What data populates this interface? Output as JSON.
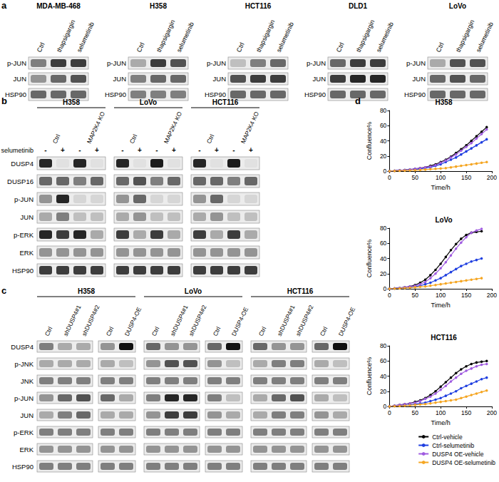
{
  "panels": {
    "a": {
      "label": "a",
      "lanes": [
        "Ctrl",
        "thapsigargin",
        "selumetinib"
      ],
      "groups": [
        {
          "name": "MDA-MB-468",
          "rows": [
            {
              "name": "p-JUN",
              "bands": [
                0.5,
                0.8,
                0.8
              ]
            },
            {
              "name": "JUN",
              "bands": [
                0.4,
                0.6,
                0.7
              ]
            },
            {
              "name": "HSP90",
              "bands": [
                0.6,
                0.6,
                0.6
              ]
            }
          ]
        },
        {
          "name": "H358",
          "rows": [
            {
              "name": "p-JUN",
              "bands": [
                0.3,
                0.8,
                0.7
              ]
            },
            {
              "name": "JUN",
              "bands": [
                0.5,
                0.6,
                0.6
              ]
            },
            {
              "name": "HSP90",
              "bands": [
                0.5,
                0.5,
                0.5
              ]
            }
          ]
        },
        {
          "name": "HCT116",
          "rows": [
            {
              "name": "p-JUN",
              "bands": [
                0.2,
                0.5,
                0.6
              ]
            },
            {
              "name": "JUN",
              "bands": [
                0.7,
                0.8,
                0.8
              ]
            },
            {
              "name": "HSP90",
              "bands": [
                0.6,
                0.6,
                0.6
              ]
            }
          ]
        },
        {
          "name": "DLD1",
          "rows": [
            {
              "name": "p-JUN",
              "bands": [
                0.6,
                0.8,
                0.8
              ]
            },
            {
              "name": "JUN",
              "bands": [
                0.8,
                0.9,
                0.9
              ]
            },
            {
              "name": "HSP90",
              "bands": [
                0.6,
                0.6,
                0.6
              ]
            }
          ]
        },
        {
          "name": "LoVo",
          "rows": [
            {
              "name": "p-JUN",
              "bands": [
                0.3,
                0.7,
                0.7
              ]
            },
            {
              "name": "JUN",
              "bands": [
                0.6,
                0.7,
                0.6
              ]
            },
            {
              "name": "HSP90",
              "bands": [
                0.6,
                0.6,
                0.6
              ]
            }
          ]
        }
      ]
    },
    "b": {
      "label": "b",
      "groups": [
        "H358",
        "LoVo",
        "HCT116"
      ],
      "subgroups": [
        "Ctrl",
        "MAP2K4 KO"
      ],
      "treatment": "selumetinib",
      "signs": [
        "-",
        "+",
        "-",
        "+"
      ],
      "rows": [
        {
          "name": "DUSP4",
          "bands": [
            0.9,
            0.05,
            0.9,
            0.05,
            0.9,
            0.05,
            0.95,
            0.05,
            0.9,
            0.05,
            0.95,
            0.05
          ]
        },
        {
          "name": "DUSP16",
          "bands": [
            0.6,
            0.6,
            0.5,
            0.6,
            0.6,
            0.7,
            0.5,
            0.6,
            0.6,
            0.6,
            0.5,
            0.6
          ]
        },
        {
          "name": "p-JUN",
          "bands": [
            0.4,
            0.9,
            0.1,
            0.1,
            0.4,
            0.6,
            0.1,
            0.1,
            0.4,
            0.6,
            0.1,
            0.1
          ]
        },
        {
          "name": "JUN",
          "bands": [
            0.3,
            0.5,
            0.2,
            0.2,
            0.3,
            0.4,
            0.2,
            0.2,
            0.3,
            0.4,
            0.2,
            0.2
          ]
        },
        {
          "name": "p-ERK",
          "bands": [
            0.9,
            0.8,
            0.9,
            0.3,
            0.8,
            0.3,
            0.8,
            0.3,
            0.8,
            0.3,
            0.8,
            0.3
          ]
        },
        {
          "name": "ERK",
          "bands": [
            0.4,
            0.4,
            0.4,
            0.4,
            0.4,
            0.4,
            0.4,
            0.4,
            0.4,
            0.4,
            0.4,
            0.4
          ]
        },
        {
          "name": "HSP90",
          "bands": [
            0.8,
            0.8,
            0.8,
            0.8,
            0.8,
            0.8,
            0.8,
            0.8,
            0.8,
            0.8,
            0.8,
            0.8
          ]
        }
      ]
    },
    "c": {
      "label": "c",
      "groups": [
        "H358",
        "LoVo",
        "HCT116"
      ],
      "lanes": [
        "Ctrl",
        "shDUSP4#1",
        "shDUSP4#2",
        "Ctrl",
        "DUSP4-OE"
      ],
      "rows": [
        {
          "name": "DUSP4",
          "bands": [
            0.5,
            0.3,
            0.3,
            0.4,
            1.0,
            0.6,
            0.4,
            0.4,
            0.6,
            1.0,
            0.6,
            0.4,
            0.4,
            0.6,
            1.0
          ]
        },
        {
          "name": "p-JNK",
          "bands": [
            0.3,
            0.3,
            0.3,
            0.3,
            0.2,
            0.4,
            0.7,
            0.7,
            0.4,
            0.2,
            0.3,
            0.5,
            0.5,
            0.3,
            0.2
          ]
        },
        {
          "name": "JNK",
          "bands": [
            0.5,
            0.5,
            0.5,
            0.5,
            0.5,
            0.5,
            0.5,
            0.5,
            0.5,
            0.5,
            0.5,
            0.5,
            0.5,
            0.5,
            0.5
          ]
        },
        {
          "name": "p-JUN",
          "bands": [
            0.4,
            0.6,
            0.7,
            0.6,
            0.3,
            0.5,
            0.9,
            0.9,
            0.5,
            0.2,
            0.3,
            0.6,
            0.7,
            0.3,
            0.2
          ]
        },
        {
          "name": "JUN",
          "bands": [
            0.3,
            0.5,
            0.6,
            0.3,
            0.3,
            0.4,
            0.8,
            0.8,
            0.4,
            0.3,
            0.3,
            0.5,
            0.5,
            0.4,
            0.3
          ]
        },
        {
          "name": "p-ERK",
          "bands": [
            0.5,
            0.5,
            0.5,
            0.5,
            0.5,
            0.5,
            0.5,
            0.5,
            0.5,
            0.5,
            0.5,
            0.5,
            0.5,
            0.5,
            0.5
          ]
        },
        {
          "name": "ERK",
          "bands": [
            0.4,
            0.4,
            0.4,
            0.4,
            0.4,
            0.4,
            0.4,
            0.4,
            0.4,
            0.4,
            0.4,
            0.4,
            0.4,
            0.4,
            0.4
          ]
        },
        {
          "name": "HSP90",
          "bands": [
            0.5,
            0.5,
            0.5,
            0.5,
            0.5,
            0.5,
            0.5,
            0.5,
            0.5,
            0.5,
            0.5,
            0.5,
            0.5,
            0.5,
            0.5
          ]
        }
      ]
    },
    "d": {
      "label": "d"
    }
  },
  "chart_data": [
    {
      "type": "line",
      "title": "H358",
      "xlabel": "Time/h",
      "ylabel": "Confluence%",
      "x": [
        0,
        10,
        20,
        30,
        40,
        50,
        60,
        70,
        80,
        90,
        100,
        110,
        120,
        130,
        140,
        150,
        160,
        170,
        180,
        190
      ],
      "xlim": [
        0,
        200
      ],
      "xticks": [
        0,
        50,
        100,
        150,
        200
      ],
      "ylim": [
        0,
        80
      ],
      "yticks": [
        0,
        20,
        40,
        60,
        80
      ],
      "grid": false,
      "series": [
        {
          "name": "Ctrl-vehicle",
          "color": "#000000",
          "marker": "circle",
          "values": [
            0,
            0.5,
            1,
            1.5,
            2,
            3,
            4,
            5,
            7,
            9,
            12,
            15,
            19,
            24,
            29,
            34,
            40,
            46,
            52,
            58
          ]
        },
        {
          "name": "Ctrl-selumetinib",
          "color": "#1f3fe0",
          "marker": "circle",
          "values": [
            0,
            0.5,
            1,
            1.5,
            2,
            2.5,
            3,
            4,
            5,
            7,
            9,
            12,
            15,
            18,
            22,
            26,
            30,
            34,
            38,
            42
          ]
        },
        {
          "name": "DUSP4 OE-vehicle",
          "color": "#a05ce0",
          "marker": "circle",
          "values": [
            0,
            0.5,
            1,
            1.5,
            2,
            3,
            4,
            5,
            6,
            8,
            11,
            14,
            18,
            22,
            27,
            32,
            37,
            43,
            49,
            55
          ]
        },
        {
          "name": "DUSP4 OE-selumetinib",
          "color": "#f5a623",
          "marker": "circle",
          "values": [
            0,
            0.3,
            0.5,
            0.8,
            1,
            1.2,
            1.5,
            2,
            2.5,
            3,
            3.5,
            4,
            5,
            6,
            7,
            8,
            9,
            10,
            11,
            12
          ]
        }
      ]
    },
    {
      "type": "line",
      "title": "LoVo",
      "xlabel": "Time/h",
      "ylabel": "Confluence%",
      "x": [
        0,
        10,
        20,
        30,
        40,
        50,
        60,
        70,
        80,
        90,
        100,
        110,
        120,
        130,
        140,
        150,
        160,
        170,
        180
      ],
      "xlim": [
        0,
        200
      ],
      "xticks": [
        0,
        50,
        100,
        150,
        200
      ],
      "ylim": [
        0,
        80
      ],
      "yticks": [
        0,
        20,
        40,
        60,
        80
      ],
      "grid": false,
      "series": [
        {
          "name": "Ctrl-vehicle",
          "color": "#000000",
          "marker": "circle",
          "values": [
            0,
            0.5,
            1,
            2,
            3,
            5,
            8,
            12,
            18,
            25,
            33,
            42,
            51,
            59,
            66,
            71,
            74,
            75,
            76
          ]
        },
        {
          "name": "Ctrl-selumetinib",
          "color": "#1f3fe0",
          "marker": "circle",
          "values": [
            0,
            0.5,
            1,
            1.5,
            2,
            3,
            4,
            6,
            8,
            11,
            14,
            18,
            22,
            26,
            30,
            33,
            36,
            38,
            40
          ]
        },
        {
          "name": "DUSP4 OE-vehicle",
          "color": "#a05ce0",
          "marker": "circle",
          "values": [
            0,
            0.5,
            1,
            2,
            3,
            4,
            6,
            9,
            14,
            20,
            27,
            35,
            44,
            53,
            61,
            68,
            74,
            77,
            79
          ]
        },
        {
          "name": "DUSP4 OE-selumetinib",
          "color": "#f5a623",
          "marker": "circle",
          "values": [
            0,
            0.3,
            0.5,
            1,
            1.5,
            2,
            2.5,
            3,
            4,
            5,
            6,
            7,
            8,
            9,
            10,
            11,
            12,
            13,
            14
          ]
        }
      ]
    },
    {
      "type": "line",
      "title": "HCT116",
      "xlabel": "Time/h",
      "ylabel": "Confluence%",
      "x": [
        0,
        10,
        20,
        30,
        40,
        50,
        60,
        70,
        80,
        90,
        100,
        110,
        120,
        130,
        140,
        150,
        160,
        170,
        180,
        190
      ],
      "xlim": [
        0,
        200
      ],
      "xticks": [
        0,
        50,
        100,
        150,
        200
      ],
      "ylim": [
        0,
        80
      ],
      "yticks": [
        0,
        20,
        40,
        60,
        80
      ],
      "grid": false,
      "legend": "bottom right",
      "series": [
        {
          "name": "Ctrl-vehicle",
          "color": "#000000",
          "marker": "circle",
          "values": [
            0,
            1,
            2,
            3,
            4,
            6,
            8,
            11,
            15,
            20,
            26,
            32,
            38,
            44,
            49,
            53,
            56,
            58,
            59,
            60
          ]
        },
        {
          "name": "Ctrl-selumetinib",
          "color": "#1f3fe0",
          "marker": "circle",
          "values": [
            0,
            0.5,
            1,
            1.5,
            2,
            3,
            4,
            5,
            7,
            9,
            11,
            14,
            17,
            20,
            24,
            27,
            30,
            33,
            36,
            38
          ]
        },
        {
          "name": "DUSP4 OE-vehicle",
          "color": "#a05ce0",
          "marker": "circle",
          "values": [
            0,
            1,
            2,
            3,
            4,
            5,
            7,
            10,
            13,
            17,
            22,
            27,
            33,
            38,
            43,
            47,
            50,
            53,
            55,
            56
          ]
        },
        {
          "name": "DUSP4 OE-selumetinib",
          "color": "#f5a623",
          "marker": "circle",
          "values": [
            0,
            0.3,
            0.5,
            1,
            1.5,
            2,
            2.5,
            3,
            4,
            5,
            6,
            7,
            8,
            9,
            11,
            13,
            15,
            17,
            19,
            21
          ]
        }
      ]
    }
  ]
}
